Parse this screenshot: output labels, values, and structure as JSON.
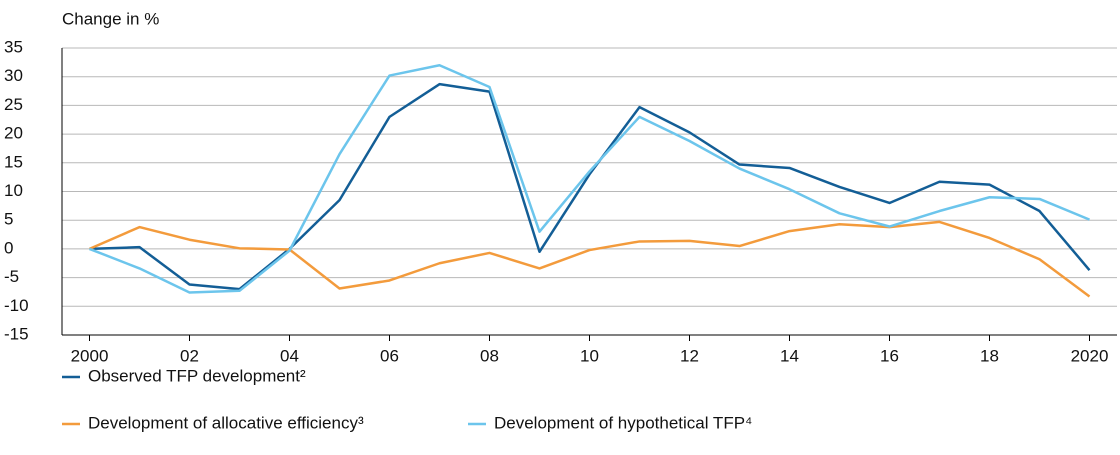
{
  "chart_data": {
    "type": "line",
    "y_axis_label": "Change in %",
    "x": [
      2000,
      2001,
      2002,
      2003,
      2004,
      2005,
      2006,
      2007,
      2008,
      2009,
      2010,
      2011,
      2012,
      2013,
      2014,
      2015,
      2016,
      2017,
      2018,
      2019,
      2020
    ],
    "series": [
      {
        "name": "Observed TFP development²",
        "color": "#135e96",
        "values": [
          0,
          0.3,
          -6.2,
          -7,
          0,
          8.5,
          23,
          28.7,
          27.4,
          -0.5,
          13,
          24.7,
          20.3,
          14.7,
          14.1,
          10.8,
          8,
          11.7,
          11.2,
          6.6,
          -3.7
        ]
      },
      {
        "name": "Development of allocative efficiency³",
        "color": "#f39b3c",
        "values": [
          0,
          3.8,
          1.6,
          0.1,
          -0.1,
          -6.9,
          -5.5,
          -2.5,
          -0.7,
          -3.4,
          -0.2,
          1.3,
          1.4,
          0.5,
          3.1,
          4.3,
          3.8,
          4.7,
          1.9,
          -1.8,
          -8.3
        ]
      },
      {
        "name": "Development of hypothetical TFP⁴",
        "color": "#6cc5ec",
        "values": [
          0,
          -3.4,
          -7.6,
          -7.3,
          -0.3,
          16.5,
          30.2,
          32,
          28.2,
          3,
          13.5,
          23,
          18.8,
          14,
          10.4,
          6.2,
          3.9,
          6.6,
          9,
          8.7,
          5.1
        ]
      }
    ],
    "xlim": [
      1999.45,
      2020.55
    ],
    "xticks": [
      2000,
      {
        "value": 2002,
        "label": "02"
      },
      {
        "value": 2004,
        "label": "04"
      },
      {
        "value": 2006,
        "label": "06"
      },
      {
        "value": 2008,
        "label": "08"
      },
      {
        "value": 2010,
        "label": "10"
      },
      {
        "value": 2012,
        "label": "12"
      },
      {
        "value": 2014,
        "label": "14"
      },
      {
        "value": 2016,
        "label": "16"
      },
      {
        "value": 2018,
        "label": "18"
      },
      2020
    ],
    "ylim": [
      -15,
      35
    ],
    "yticks": [
      -15,
      -10,
      -5,
      0,
      5,
      10,
      15,
      20,
      25,
      30,
      35
    ],
    "grid": true
  }
}
